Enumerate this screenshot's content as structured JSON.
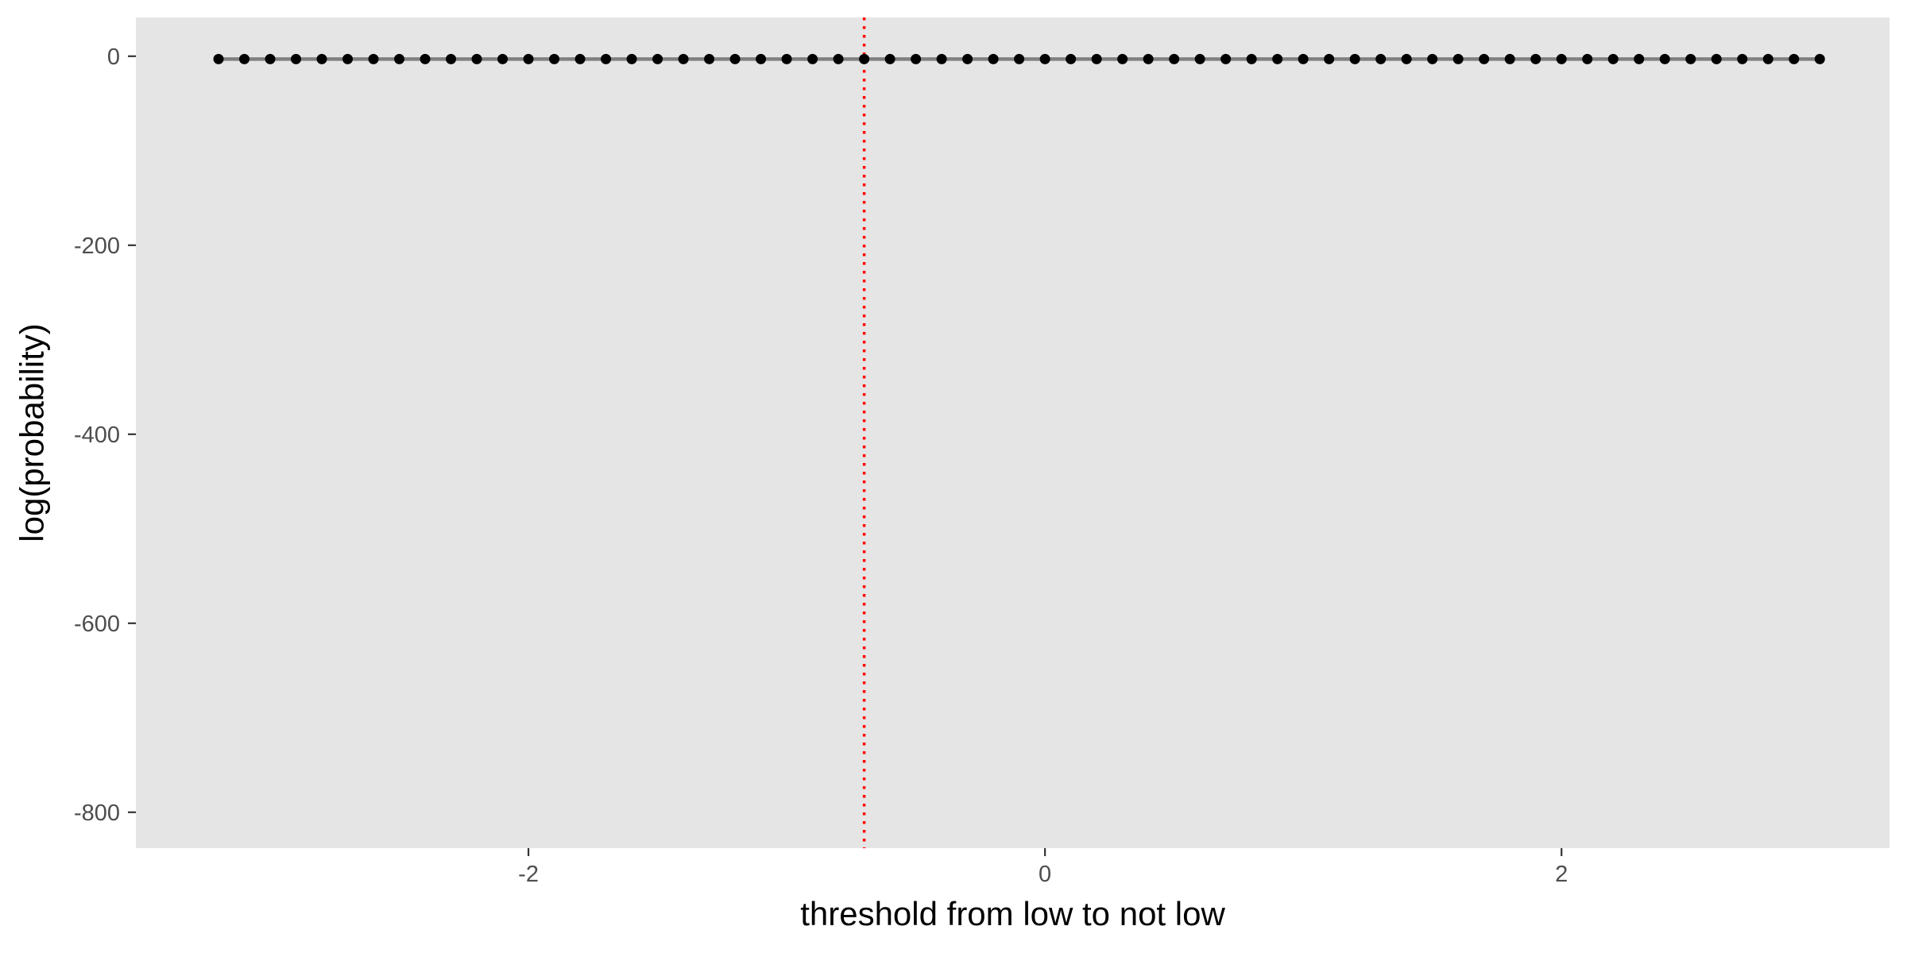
{
  "chart_data": {
    "type": "line",
    "title": "",
    "xlabel": "threshold from low to not low",
    "ylabel": "log(probability)",
    "xlim": [
      -3.52,
      3.27
    ],
    "ylim": [
      -838,
      41
    ],
    "x_ticks": [
      -2,
      0,
      2
    ],
    "y_ticks": [
      0,
      -200,
      -400,
      -600,
      -800
    ],
    "x_tick_labels": [
      "-2",
      "0",
      "2"
    ],
    "y_tick_labels": [
      "0",
      "-200",
      "-400",
      "-600",
      "-800"
    ],
    "grid": false,
    "legend": "none",
    "colors": {
      "panel_background": "#e5e5e5",
      "line": "#808080",
      "points": "#000000",
      "reference_line": "#ff0000",
      "tick_label": "#4d4d4d"
    },
    "reference_line": {
      "orientation": "vertical",
      "x": -0.7,
      "style": "dotted"
    },
    "series": [
      {
        "x": [
          -3.2,
          -3.1,
          -3.0,
          -2.9,
          -2.8,
          -2.7,
          -2.6,
          -2.5,
          -2.4,
          -2.3,
          -2.2,
          -2.1,
          -2.0,
          -1.9,
          -1.8,
          -1.7,
          -1.6,
          -1.5,
          -1.4,
          -1.3,
          -1.2,
          -1.1,
          -1.0,
          -0.9,
          -0.8,
          -0.7,
          -0.6,
          -0.5,
          -0.4,
          -0.3,
          -0.2,
          -0.1,
          0.0,
          0.1,
          0.2,
          0.3,
          0.4,
          0.5,
          0.6,
          0.7,
          0.8,
          0.9,
          1.0,
          1.1,
          1.2,
          1.3,
          1.4,
          1.5,
          1.6,
          1.7,
          1.8,
          1.9,
          2.0,
          2.1,
          2.2,
          2.3,
          2.4,
          2.5,
          2.6,
          2.7,
          2.8,
          2.9,
          3.0
        ],
        "y": [
          -3,
          -3,
          -3,
          -3,
          -3,
          -3,
          -3,
          -3,
          -3,
          -3,
          -3,
          -3,
          -3,
          -3,
          -3,
          -3,
          -3,
          -3,
          -3,
          -3,
          -3,
          -3,
          -3,
          -3,
          -3,
          -3,
          -3,
          -3,
          -3,
          -3,
          -3,
          -3,
          -3,
          -3,
          -3,
          -3,
          -3,
          -3,
          -3,
          -3,
          -3,
          -3,
          -3,
          -3,
          -3,
          -3,
          -3,
          -3,
          -3,
          -3,
          -3,
          -3,
          -3,
          -3,
          -3,
          -3,
          -3,
          -3,
          -3,
          -3,
          -3,
          -3,
          -3
        ]
      }
    ]
  }
}
